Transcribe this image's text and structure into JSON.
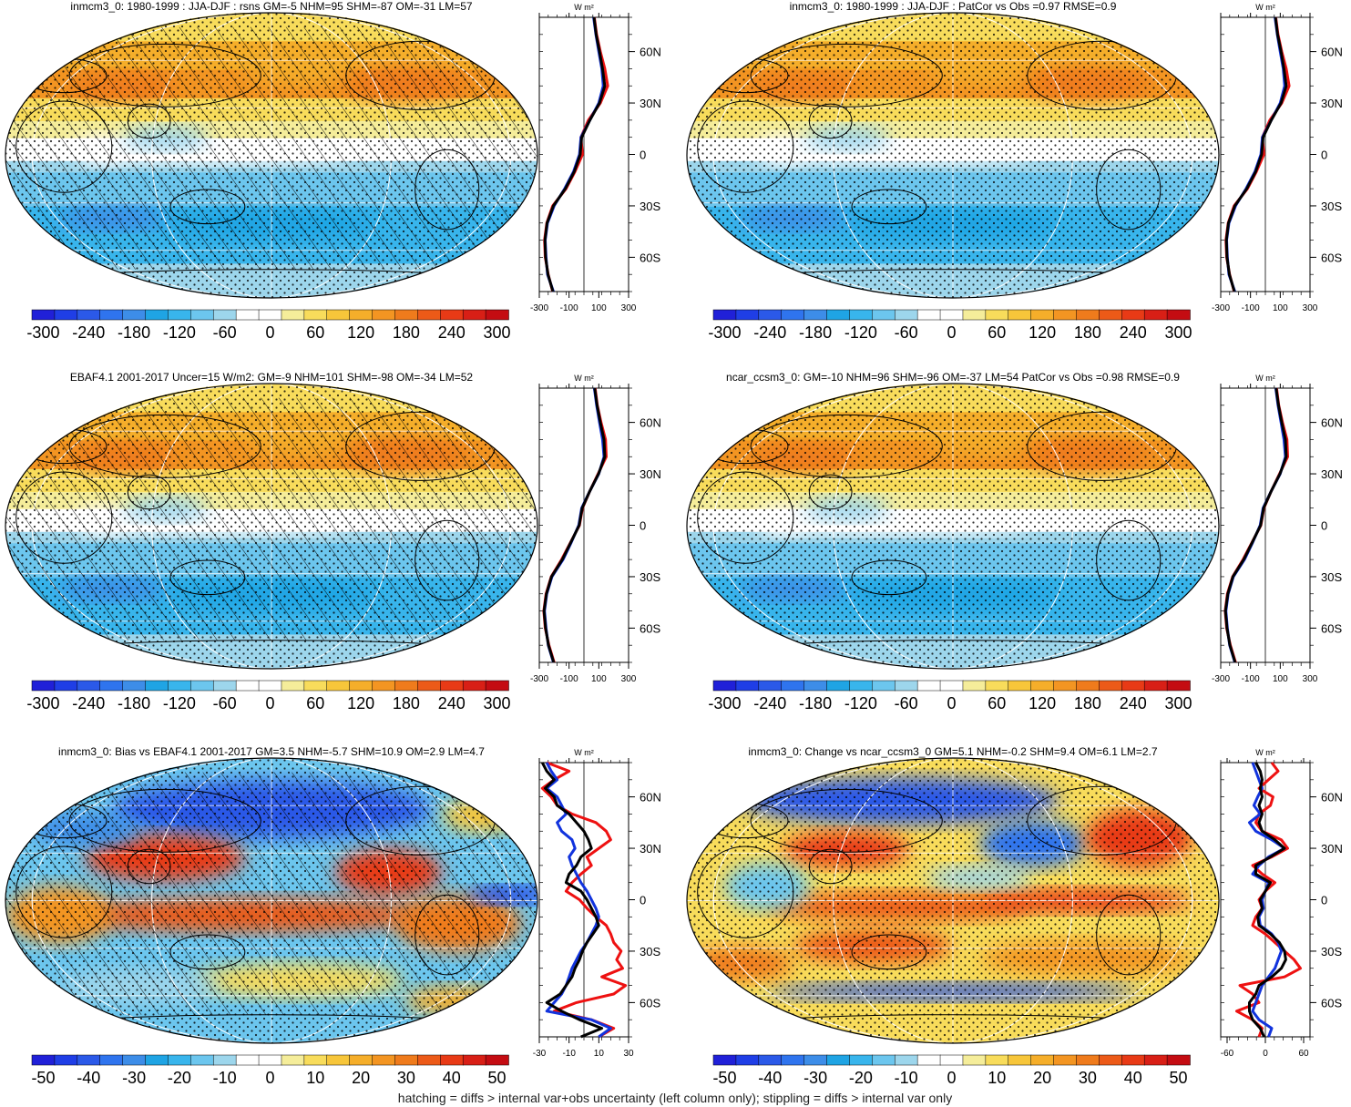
{
  "footer": "hatching = diffs > internal var+obs uncertainty (left column only); stippling = diffs > internal var only",
  "profile_unit": "W m²",
  "lat_ticks": [
    "60N",
    "30N",
    "0",
    "30S",
    "60S"
  ],
  "colors": {
    "obs": "#ee1111",
    "model": "#1133dd",
    "other": "#000000"
  },
  "chart_data": [
    {
      "type": "heatmap",
      "title": "inmcm3_0: 1980-1999 : JJA-DJF : rsns GM=-5 NHM=95 SHM=-87 OM=-31 LM=57",
      "map_pattern": "seasonal",
      "hatching": true,
      "colorbar_ticks": [
        "-300",
        "-240",
        "-180",
        "-120",
        "-60",
        "0",
        "60",
        "120",
        "180",
        "240",
        "300"
      ],
      "colorbar_range": [
        -300,
        300
      ],
      "profile": {
        "xticks": [
          "-300",
          "-100",
          "100",
          "300"
        ],
        "xlim": [
          -300,
          300
        ],
        "lat": [
          80,
          70,
          60,
          50,
          40,
          30,
          20,
          10,
          0,
          -10,
          -20,
          -30,
          -40,
          -50,
          -60,
          -70,
          -80
        ],
        "series": [
          {
            "color": "red",
            "values": [
              70,
              85,
              110,
              140,
              160,
              110,
              30,
              -20,
              -10,
              -60,
              -120,
              -210,
              -250,
              -265,
              -260,
              -240,
              -210
            ]
          },
          {
            "color": "blue",
            "values": [
              65,
              80,
              100,
              120,
              130,
              100,
              40,
              -20,
              -30,
              -70,
              -130,
              -200,
              -245,
              -260,
              -255,
              -245,
              -205
            ]
          },
          {
            "color": "black",
            "values": [
              68,
              82,
              105,
              125,
              140,
              105,
              40,
              -15,
              -25,
              -65,
              -125,
              -205,
              -248,
              -262,
              -258,
              -242,
              -208
            ]
          }
        ]
      }
    },
    {
      "type": "heatmap",
      "title": "inmcm3_0: 1980-1999 : JJA-DJF : PatCor vs Obs =0.97 RMSE=0.9",
      "map_pattern": "seasonal",
      "hatching": false,
      "colorbar_ticks": [
        "-300",
        "-240",
        "-180",
        "-120",
        "-60",
        "0",
        "60",
        "120",
        "180",
        "240",
        "300"
      ],
      "colorbar_range": [
        -300,
        300
      ],
      "profile": {
        "xticks": [
          "-300",
          "-100",
          "100",
          "300"
        ],
        "xlim": [
          -300,
          300
        ],
        "lat": [
          80,
          70,
          60,
          50,
          40,
          30,
          20,
          10,
          0,
          -10,
          -20,
          -30,
          -40,
          -50,
          -60,
          -70,
          -80
        ],
        "series": [
          {
            "color": "red",
            "values": [
              70,
              85,
              110,
              140,
              160,
              110,
              30,
              -20,
              -10,
              -60,
              -120,
              -210,
              -250,
              -265,
              -260,
              -240,
              -210
            ]
          },
          {
            "color": "blue",
            "values": [
              65,
              80,
              100,
              120,
              130,
              100,
              40,
              -20,
              -30,
              -70,
              -130,
              -200,
              -245,
              -260,
              -255,
              -245,
              -205
            ]
          },
          {
            "color": "black",
            "values": [
              68,
              82,
              105,
              125,
              140,
              105,
              40,
              -15,
              -25,
              -65,
              -125,
              -205,
              -248,
              -262,
              -258,
              -242,
              -208
            ]
          }
        ]
      }
    },
    {
      "type": "heatmap",
      "title": "EBAF4.1 2001-2017 Uncer=15 W/m2: GM=-9 NHM=101 SHM=-98 OM=-34 LM=52",
      "map_pattern": "seasonal",
      "hatching": true,
      "colorbar_ticks": [
        "-300",
        "-240",
        "-180",
        "-120",
        "-60",
        "0",
        "60",
        "120",
        "180",
        "240",
        "300"
      ],
      "colorbar_range": [
        -300,
        300
      ],
      "profile": {
        "xticks": [
          "-300",
          "-100",
          "100",
          "300"
        ],
        "xlim": [
          -300,
          300
        ],
        "lat": [
          80,
          70,
          60,
          50,
          40,
          30,
          20,
          10,
          0,
          -10,
          -20,
          -30,
          -40,
          -50,
          -60,
          -70,
          -80
        ],
        "series": [
          {
            "color": "red",
            "values": [
              75,
              90,
              115,
              145,
              150,
              95,
              40,
              -10,
              -30,
              -90,
              -150,
              -220,
              -255,
              -270,
              -260,
              -235,
              -200
            ]
          },
          {
            "color": "blue",
            "values": [
              70,
              85,
              105,
              125,
              135,
              100,
              40,
              -15,
              -35,
              -85,
              -140,
              -215,
              -250,
              -265,
              -255,
              -240,
              -205
            ]
          },
          {
            "color": "black",
            "values": [
              72,
              88,
              110,
              135,
              140,
              98,
              40,
              -12,
              -32,
              -88,
              -145,
              -218,
              -252,
              -268,
              -258,
              -238,
              -203
            ]
          }
        ]
      }
    },
    {
      "type": "heatmap",
      "title": "ncar_ccsm3_0: GM=-10 NHM=96 SHM=-96 OM=-37 LM=54 PatCor vs Obs =0.98 RMSE=0.9",
      "map_pattern": "seasonal",
      "hatching": false,
      "colorbar_ticks": [
        "-300",
        "-240",
        "-180",
        "-120",
        "-60",
        "0",
        "60",
        "120",
        "180",
        "240",
        "300"
      ],
      "colorbar_range": [
        -300,
        300
      ],
      "profile": {
        "xticks": [
          "-300",
          "-100",
          "100",
          "300"
        ],
        "xlim": [
          -300,
          300
        ],
        "lat": [
          80,
          70,
          60,
          50,
          40,
          30,
          20,
          10,
          0,
          -10,
          -20,
          -30,
          -40,
          -50,
          -60,
          -70,
          -80
        ],
        "series": [
          {
            "color": "red",
            "values": [
              75,
              90,
              115,
              145,
              150,
              95,
              40,
              -10,
              -30,
              -90,
              -150,
              -220,
              -255,
              -270,
              -260,
              -235,
              -200
            ]
          },
          {
            "color": "blue",
            "values": [
              70,
              85,
              105,
              125,
              135,
              100,
              40,
              -15,
              -35,
              -85,
              -140,
              -215,
              -250,
              -265,
              -255,
              -240,
              -205
            ]
          },
          {
            "color": "black",
            "values": [
              72,
              88,
              110,
              135,
              140,
              98,
              40,
              -12,
              -32,
              -88,
              -145,
              -218,
              -252,
              -268,
              -258,
              -238,
              -203
            ]
          }
        ]
      }
    },
    {
      "type": "heatmap",
      "title": "inmcm3_0: Bias vs EBAF4.1 2001-2017 GM=3.5 NHM=-5.7 SHM=10.9 OM=2.9 LM=4.7",
      "map_pattern": "bias",
      "hatching": true,
      "colorbar_ticks": [
        "-50",
        "-40",
        "-30",
        "-20",
        "-10",
        "0",
        "10",
        "20",
        "30",
        "40",
        "50"
      ],
      "colorbar_range": [
        -50,
        50
      ],
      "profile": {
        "xticks": [
          "-30",
          "-10",
          "10",
          "30"
        ],
        "xlim": [
          -30,
          30
        ],
        "lat": [
          80,
          75,
          70,
          65,
          60,
          55,
          50,
          45,
          40,
          35,
          30,
          25,
          20,
          15,
          10,
          5,
          0,
          -5,
          -10,
          -15,
          -20,
          -25,
          -30,
          -35,
          -40,
          -45,
          -50,
          -55,
          -60,
          -65,
          -70,
          -75,
          -80
        ],
        "series": [
          {
            "color": "red",
            "values": [
              -25,
              -10,
              -20,
              -28,
              -22,
              -18,
              -8,
              8,
              15,
              18,
              10,
              2,
              5,
              -2,
              -8,
              -12,
              -3,
              2,
              8,
              15,
              18,
              20,
              25,
              22,
              26,
              12,
              28,
              20,
              -5,
              -20,
              5,
              20,
              10
            ]
          },
          {
            "color": "blue",
            "values": [
              -25,
              -22,
              -18,
              -25,
              -18,
              -15,
              -12,
              -18,
              -15,
              -8,
              -6,
              -10,
              -8,
              -5,
              -2,
              2,
              5,
              8,
              10,
              8,
              5,
              2,
              -2,
              -5,
              -8,
              -10,
              -12,
              -15,
              -20,
              -25,
              5,
              18,
              10
            ]
          },
          {
            "color": "black",
            "values": [
              -28,
              -25,
              -20,
              -26,
              -20,
              -18,
              -10,
              -5,
              0,
              3,
              5,
              -2,
              -5,
              -10,
              -12,
              -2,
              2,
              5,
              8,
              10,
              6,
              2,
              -1,
              -3,
              -6,
              -8,
              -12,
              -16,
              -25,
              -15,
              -3,
              12,
              -2
            ]
          }
        ]
      }
    },
    {
      "type": "heatmap",
      "title": "inmcm3_0: Change vs ncar_ccsm3_0 GM=5.1 NHM=-0.2 SHM=9.4 OM=6.1 LM=2.7",
      "map_pattern": "change",
      "hatching": false,
      "colorbar_ticks": [
        "-50",
        "-40",
        "-30",
        "-20",
        "-10",
        "0",
        "10",
        "20",
        "30",
        "40",
        "50"
      ],
      "colorbar_range": [
        -50,
        50
      ],
      "profile": {
        "xticks": [
          "-60",
          "0",
          "60"
        ],
        "xlim": [
          -70,
          70
        ],
        "lat": [
          80,
          75,
          70,
          65,
          60,
          55,
          50,
          45,
          40,
          35,
          30,
          25,
          20,
          15,
          10,
          5,
          0,
          -5,
          -10,
          -15,
          -20,
          -25,
          -30,
          -35,
          -40,
          -45,
          -50,
          -55,
          -60,
          -65,
          -70,
          -75,
          -80
        ],
        "series": [
          {
            "color": "red",
            "values": [
              10,
              20,
              5,
              -10,
              12,
              8,
              -10,
              -15,
              -5,
              25,
              35,
              10,
              -20,
              -5,
              15,
              0,
              -10,
              -5,
              -15,
              -20,
              0,
              15,
              30,
              45,
              55,
              30,
              -40,
              -20,
              -10,
              -45,
              -20,
              -5,
              -10
            ]
          },
          {
            "color": "blue",
            "values": [
              -20,
              -15,
              -10,
              -5,
              -12,
              -18,
              -8,
              -25,
              -15,
              10,
              30,
              5,
              -10,
              -20,
              5,
              0,
              -5,
              -3,
              -10,
              -8,
              10,
              20,
              25,
              20,
              15,
              5,
              -5,
              -10,
              -15,
              -20,
              -10,
              10,
              5
            ]
          },
          {
            "color": "black",
            "values": [
              -15,
              -8,
              -5,
              -8,
              -5,
              -10,
              -5,
              -10,
              -5,
              15,
              30,
              8,
              -15,
              -15,
              8,
              0,
              -8,
              -5,
              -12,
              -10,
              8,
              22,
              30,
              32,
              25,
              10,
              -10,
              -15,
              -25,
              -25,
              -20,
              -8,
              -2
            ]
          }
        ]
      }
    }
  ]
}
